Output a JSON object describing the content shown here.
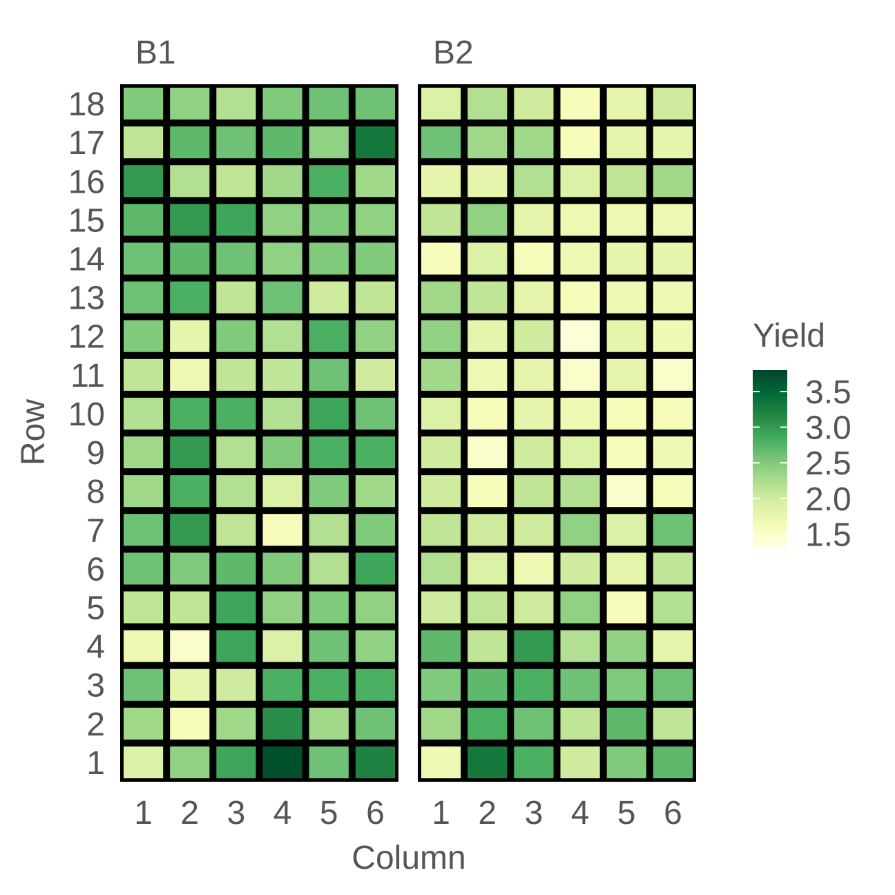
{
  "chart_data": {
    "type": "heatmap",
    "xlabel": "Column",
    "ylabel": "Row",
    "legend": {
      "title": "Yield",
      "position": "right",
      "ticks": [
        "1.5",
        "2.0",
        "2.5",
        "3.0",
        "3.5"
      ]
    },
    "color_range": [
      1.3,
      3.8
    ],
    "colors": [
      "#ffffe5",
      "#f7fcb9",
      "#d9f0a3",
      "#addd8e",
      "#78c679",
      "#41ab5d",
      "#238443",
      "#006837",
      "#004529"
    ],
    "x": [
      "1",
      "2",
      "3",
      "4",
      "5",
      "6"
    ],
    "y": [
      "1",
      "2",
      "3",
      "4",
      "5",
      "6",
      "7",
      "8",
      "9",
      "10",
      "11",
      "12",
      "13",
      "14",
      "15",
      "16",
      "17",
      "18"
    ],
    "panels": [
      {
        "name": "B1",
        "values": [
          [
            1.9,
            2.4,
            2.9,
            3.7,
            2.6,
            3.2
          ],
          [
            2.3,
            1.6,
            2.3,
            3.1,
            2.3,
            2.6
          ],
          [
            2.6,
            1.8,
            2.0,
            2.8,
            2.8,
            2.8
          ],
          [
            1.7,
            1.5,
            2.9,
            1.9,
            2.6,
            2.4
          ],
          [
            2.1,
            2.1,
            2.9,
            2.4,
            2.5,
            2.4
          ],
          [
            2.6,
            2.5,
            2.7,
            2.5,
            2.2,
            2.9
          ],
          [
            2.6,
            3.0,
            2.1,
            1.6,
            2.2,
            2.5
          ],
          [
            2.3,
            2.8,
            2.2,
            1.9,
            2.5,
            2.3
          ],
          [
            2.3,
            3.0,
            2.2,
            2.5,
            2.8,
            2.8
          ],
          [
            2.2,
            2.8,
            2.8,
            2.2,
            2.9,
            2.6
          ],
          [
            2.1,
            1.7,
            2.1,
            2.1,
            2.6,
            2.0
          ],
          [
            2.5,
            1.8,
            2.5,
            2.2,
            2.8,
            2.4
          ],
          [
            2.6,
            2.8,
            2.1,
            2.6,
            2.0,
            2.1
          ],
          [
            2.6,
            2.7,
            2.6,
            2.4,
            2.5,
            2.5
          ],
          [
            2.7,
            3.0,
            2.9,
            2.4,
            2.5,
            2.4
          ],
          [
            3.0,
            2.2,
            2.1,
            2.3,
            2.8,
            2.3
          ],
          [
            2.1,
            2.7,
            2.6,
            2.7,
            2.4,
            3.3
          ],
          [
            2.5,
            2.4,
            2.2,
            2.5,
            2.6,
            2.6
          ]
        ]
      },
      {
        "name": "B2",
        "values": [
          [
            1.7,
            3.3,
            2.8,
            2.0,
            2.5,
            2.7
          ],
          [
            2.3,
            2.8,
            2.6,
            2.1,
            2.7,
            2.1
          ],
          [
            2.5,
            2.7,
            2.8,
            2.6,
            2.5,
            2.6
          ],
          [
            2.7,
            2.1,
            3.0,
            2.2,
            2.4,
            1.8
          ],
          [
            2.0,
            2.1,
            2.0,
            2.4,
            1.6,
            2.2
          ],
          [
            2.2,
            1.9,
            1.7,
            2.0,
            1.8,
            2.1
          ],
          [
            2.1,
            2.0,
            2.0,
            2.4,
            1.9,
            2.6
          ],
          [
            2.0,
            1.6,
            2.1,
            2.2,
            1.5,
            1.6
          ],
          [
            2.0,
            1.5,
            2.0,
            1.9,
            1.6,
            1.7
          ],
          [
            1.9,
            1.6,
            1.8,
            1.7,
            1.6,
            1.6
          ],
          [
            2.3,
            1.7,
            1.8,
            1.5,
            1.8,
            1.5
          ],
          [
            2.4,
            1.8,
            2.0,
            1.4,
            1.8,
            1.7
          ],
          [
            2.3,
            2.1,
            1.8,
            1.6,
            1.7,
            1.7
          ],
          [
            1.6,
            1.9,
            1.6,
            1.7,
            1.8,
            1.8
          ],
          [
            2.1,
            2.4,
            1.8,
            1.7,
            1.7,
            1.7
          ],
          [
            1.8,
            1.8,
            2.2,
            1.9,
            2.1,
            2.3
          ],
          [
            2.6,
            2.3,
            2.3,
            1.6,
            1.8,
            1.8
          ],
          [
            1.9,
            2.2,
            2.0,
            1.6,
            1.8,
            2.0
          ]
        ]
      }
    ]
  }
}
